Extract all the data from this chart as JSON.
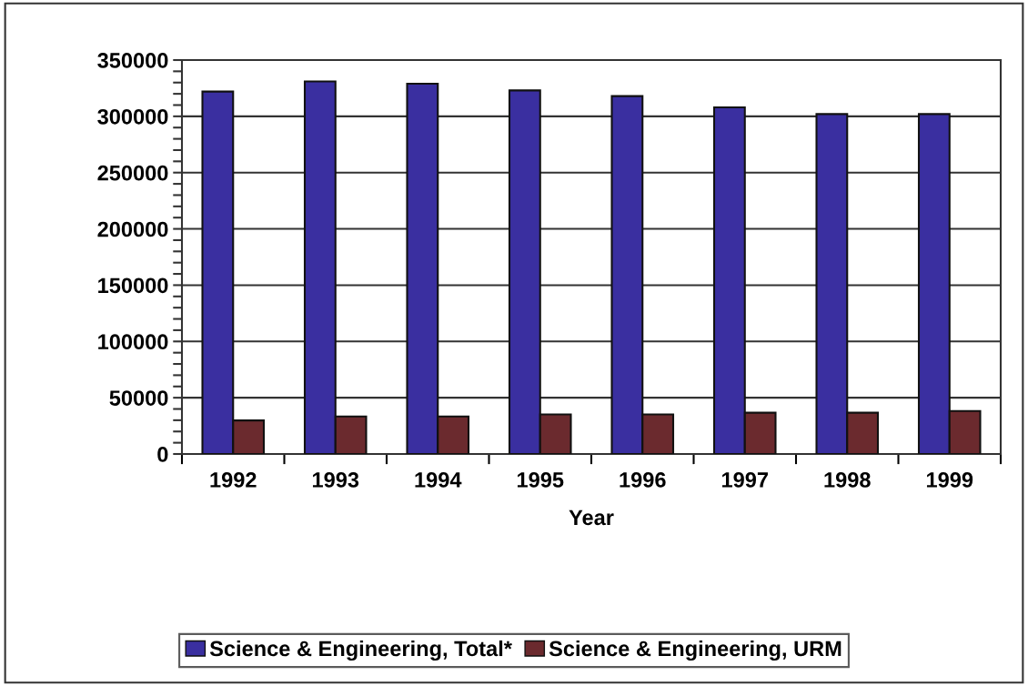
{
  "chart_data": {
    "type": "bar",
    "xlabel": "Year",
    "categories": [
      "1992",
      "1993",
      "1994",
      "1995",
      "1996",
      "1997",
      "1998",
      "1999"
    ],
    "series": [
      {
        "name": "Science & Engineering, Total*",
        "color": "#3a2fa0",
        "values": [
          322000,
          331000,
          329000,
          323000,
          318000,
          308000,
          302000,
          302000
        ]
      },
      {
        "name": "Science & Engineering, URM",
        "color": "#6b2a2e",
        "values": [
          29800,
          33300,
          33300,
          35200,
          35200,
          36700,
          36700,
          38200
        ]
      }
    ],
    "ylim": [
      0,
      350000
    ],
    "yticks": [
      0,
      {
        "value": 10000,
        "label": null
      },
      {
        "value": 20000,
        "label": null
      },
      {
        "value": 30000,
        "label": null
      },
      {
        "value": 40000,
        "label": null
      },
      50000,
      {
        "value": 60000,
        "label": null
      },
      {
        "value": 70000,
        "label": null
      },
      {
        "value": 80000,
        "label": null
      },
      {
        "value": 90000,
        "label": null
      },
      100000,
      {
        "value": 110000,
        "label": null
      },
      {
        "value": 120000,
        "label": null
      },
      {
        "value": 130000,
        "label": null
      },
      {
        "value": 140000,
        "label": null
      },
      150000,
      {
        "value": 160000,
        "label": null
      },
      {
        "value": 170000,
        "label": null
      },
      {
        "value": 180000,
        "label": null
      },
      {
        "value": 190000,
        "label": null
      },
      200000,
      {
        "value": 210000,
        "label": null
      },
      {
        "value": 220000,
        "label": null
      },
      {
        "value": 230000,
        "label": null
      },
      {
        "value": 240000,
        "label": null
      },
      250000,
      {
        "value": 260000,
        "label": null
      },
      {
        "value": 270000,
        "label": null
      },
      {
        "value": 280000,
        "label": null
      },
      {
        "value": 290000,
        "label": null
      },
      300000,
      {
        "value": 310000,
        "label": null
      },
      {
        "value": 320000,
        "label": null
      },
      {
        "value": 330000,
        "label": null
      },
      {
        "value": 340000,
        "label": null
      },
      350000
    ],
    "grid": "y",
    "legend": "bottom"
  }
}
